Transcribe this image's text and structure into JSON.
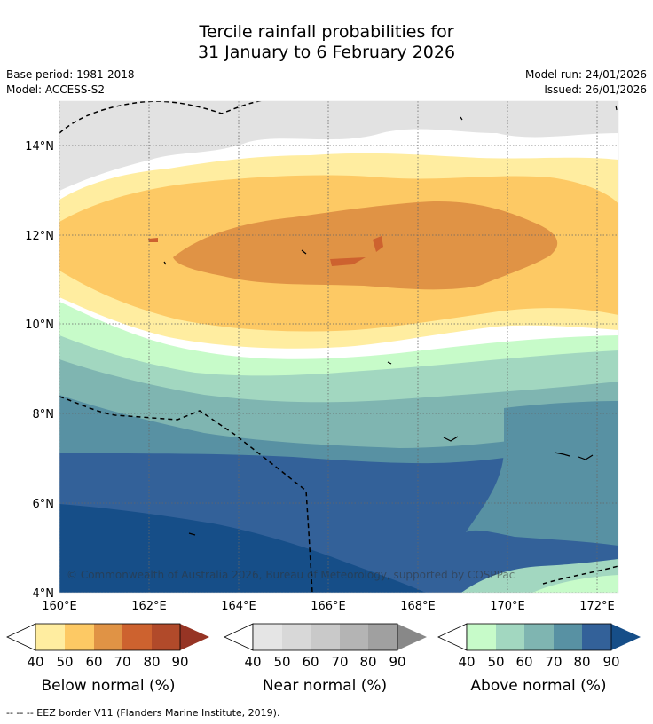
{
  "title_line1": "Tercile rainfall probabilities for",
  "title_line2": "31 January to 6 February 2026",
  "base_period": "Base period: 1981-2018",
  "model": "Model: ACCESS-S2",
  "model_run": "Model run: 24/01/2026",
  "issued": "Issued: 26/01/2026",
  "copyright": "© Commonwealth of Australia 2026, Bureau of Meteorology, supported by COSPPac",
  "lat_labels": [
    "4°N",
    "6°N",
    "8°N",
    "10°N",
    "12°N",
    "14°N"
  ],
  "lon_labels": [
    "160°E",
    "162°E",
    "164°E",
    "166°E",
    "168°E",
    "170°E",
    "172°E"
  ],
  "legends": [
    {
      "title": "Below normal (%)",
      "ticks": [
        "40",
        "50",
        "60",
        "70",
        "80",
        "90"
      ],
      "colors": [
        "#ffeda0",
        "#fdc964",
        "#e09345",
        "#cd622f",
        "#b14a2a",
        "#963424"
      ]
    },
    {
      "title": "Near normal (%)",
      "ticks": [
        "40",
        "50",
        "60",
        "70",
        "80",
        "90"
      ],
      "colors": [
        "#e5e5e5",
        "#d8d8d8",
        "#c9c9c9",
        "#b4b4b4",
        "#a0a0a0",
        "#888888"
      ]
    },
    {
      "title": "Above normal (%)",
      "ticks": [
        "40",
        "50",
        "60",
        "70",
        "80",
        "90"
      ],
      "colors": [
        "#c7fbc9",
        "#a2d7c0",
        "#7fb5b1",
        "#5891a3",
        "#336199",
        "#164e88"
      ]
    }
  ],
  "footer": "--  --  -- EEZ border V11 (Flanders Marine Institute, 2019)."
}
